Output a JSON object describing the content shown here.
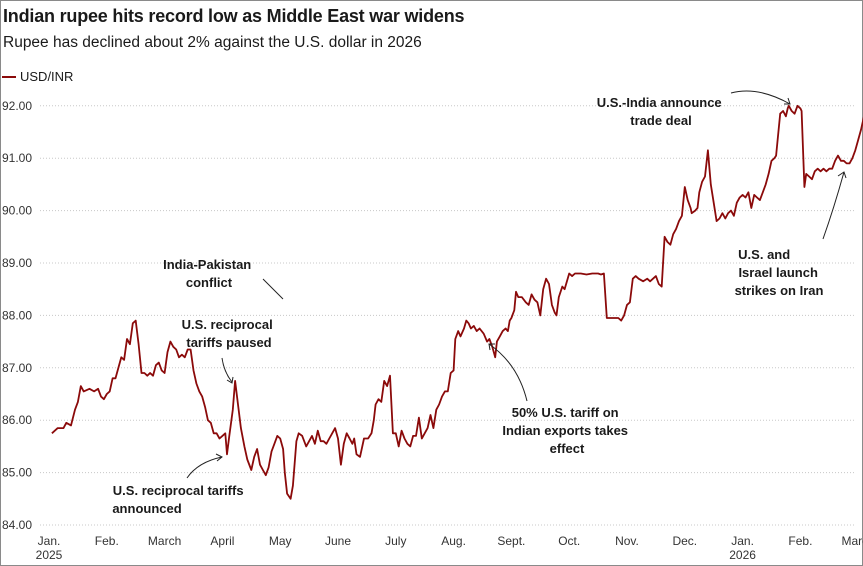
{
  "colors": {
    "line": "#8b0a0a",
    "grid": "#c8c8c8",
    "text": "#1a1a1a"
  },
  "chart_data": {
    "type": "line",
    "title": "Indian rupee hits record low as Middle East war widens",
    "subtitle": "Rupee has declined about 2% against the U.S. dollar in 2026",
    "legend": [
      "USD/INR"
    ],
    "xlabel": "",
    "ylabel": "",
    "ylim": [
      84.0,
      92.6
    ],
    "yticks": [
      84,
      85,
      86,
      87,
      88,
      89,
      90,
      91,
      92
    ],
    "ytick_labels": [
      "84.00",
      "85.00",
      "86.00",
      "87.00",
      "88.00",
      "89.00",
      "90.00",
      "91.00",
      "92.00"
    ],
    "x_unit": "months since Jan 1, 2025",
    "xlim": [
      0,
      14.3
    ],
    "xticks": [
      {
        "label": "Jan.",
        "x": 0,
        "year": "2025"
      },
      {
        "label": "Feb.",
        "x": 1
      },
      {
        "label": "March",
        "x": 2
      },
      {
        "label": "April",
        "x": 3
      },
      {
        "label": "May",
        "x": 4
      },
      {
        "label": "June",
        "x": 5
      },
      {
        "label": "July",
        "x": 6
      },
      {
        "label": "Aug.",
        "x": 7
      },
      {
        "label": "Sept.",
        "x": 8
      },
      {
        "label": "Oct.",
        "x": 9
      },
      {
        "label": "Nov.",
        "x": 10
      },
      {
        "label": "Dec.",
        "x": 11
      },
      {
        "label": "Jan.",
        "x": 12,
        "year": "2026"
      },
      {
        "label": "Feb.",
        "x": 13
      },
      {
        "label": "March",
        "x": 14
      }
    ],
    "series": [
      {
        "name": "USD/INR",
        "points": [
          [
            0.05,
            85.75
          ],
          [
            0.15,
            85.85
          ],
          [
            0.25,
            85.85
          ],
          [
            0.3,
            85.95
          ],
          [
            0.38,
            85.9
          ],
          [
            0.45,
            86.2
          ],
          [
            0.5,
            86.35
          ],
          [
            0.55,
            86.65
          ],
          [
            0.6,
            86.55
          ],
          [
            0.7,
            86.6
          ],
          [
            0.78,
            86.55
          ],
          [
            0.85,
            86.6
          ],
          [
            0.9,
            86.45
          ],
          [
            0.95,
            86.4
          ],
          [
            1.0,
            86.5
          ],
          [
            1.05,
            86.55
          ],
          [
            1.1,
            86.8
          ],
          [
            1.15,
            86.8
          ],
          [
            1.2,
            87.0
          ],
          [
            1.25,
            87.2
          ],
          [
            1.3,
            87.15
          ],
          [
            1.35,
            87.55
          ],
          [
            1.4,
            87.45
          ],
          [
            1.45,
            87.85
          ],
          [
            1.5,
            87.9
          ],
          [
            1.55,
            87.45
          ],
          [
            1.6,
            86.9
          ],
          [
            1.65,
            86.9
          ],
          [
            1.7,
            86.85
          ],
          [
            1.75,
            86.9
          ],
          [
            1.8,
            86.85
          ],
          [
            1.85,
            87.05
          ],
          [
            1.9,
            87.1
          ],
          [
            1.95,
            86.95
          ],
          [
            2.0,
            86.9
          ],
          [
            2.05,
            87.3
          ],
          [
            2.1,
            87.5
          ],
          [
            2.15,
            87.4
          ],
          [
            2.2,
            87.35
          ],
          [
            2.25,
            87.2
          ],
          [
            2.3,
            87.25
          ],
          [
            2.35,
            87.2
          ],
          [
            2.4,
            87.35
          ],
          [
            2.45,
            87.35
          ],
          [
            2.5,
            86.95
          ],
          [
            2.55,
            86.7
          ],
          [
            2.6,
            86.55
          ],
          [
            2.65,
            86.45
          ],
          [
            2.7,
            86.25
          ],
          [
            2.75,
            86.0
          ],
          [
            2.8,
            85.95
          ],
          [
            2.85,
            85.75
          ],
          [
            2.9,
            85.75
          ],
          [
            2.95,
            85.65
          ],
          [
            3.0,
            85.7
          ],
          [
            3.05,
            85.75
          ],
          [
            3.08,
            85.35
          ],
          [
            3.12,
            85.7
          ],
          [
            3.18,
            86.2
          ],
          [
            3.22,
            86.75
          ],
          [
            3.27,
            86.3
          ],
          [
            3.32,
            85.85
          ],
          [
            3.38,
            85.5
          ],
          [
            3.43,
            85.25
          ],
          [
            3.5,
            85.05
          ],
          [
            3.55,
            85.3
          ],
          [
            3.6,
            85.45
          ],
          [
            3.65,
            85.15
          ],
          [
            3.7,
            85.05
          ],
          [
            3.75,
            84.95
          ],
          [
            3.8,
            85.1
          ],
          [
            3.85,
            85.4
          ],
          [
            3.9,
            85.55
          ],
          [
            3.95,
            85.7
          ],
          [
            4.0,
            85.65
          ],
          [
            4.05,
            85.45
          ],
          [
            4.08,
            85.0
          ],
          [
            4.12,
            84.6
          ],
          [
            4.18,
            84.5
          ],
          [
            4.22,
            84.75
          ],
          [
            4.28,
            85.6
          ],
          [
            4.32,
            85.75
          ],
          [
            4.38,
            85.7
          ],
          [
            4.45,
            85.5
          ],
          [
            4.5,
            85.6
          ],
          [
            4.55,
            85.7
          ],
          [
            4.6,
            85.55
          ],
          [
            4.65,
            85.8
          ],
          [
            4.7,
            85.6
          ],
          [
            4.75,
            85.6
          ],
          [
            4.8,
            85.55
          ],
          [
            4.85,
            85.65
          ],
          [
            4.9,
            85.75
          ],
          [
            4.95,
            85.85
          ],
          [
            5.0,
            85.65
          ],
          [
            5.05,
            85.15
          ],
          [
            5.1,
            85.55
          ],
          [
            5.15,
            85.75
          ],
          [
            5.2,
            85.65
          ],
          [
            5.25,
            85.55
          ],
          [
            5.28,
            85.65
          ],
          [
            5.32,
            85.35
          ],
          [
            5.38,
            85.3
          ],
          [
            5.45,
            85.65
          ],
          [
            5.52,
            85.65
          ],
          [
            5.58,
            85.75
          ],
          [
            5.62,
            86.0
          ],
          [
            5.65,
            86.3
          ],
          [
            5.7,
            86.4
          ],
          [
            5.75,
            86.35
          ],
          [
            5.8,
            86.75
          ],
          [
            5.85,
            86.65
          ],
          [
            5.9,
            86.85
          ],
          [
            5.95,
            85.75
          ],
          [
            6.0,
            85.75
          ],
          [
            6.05,
            85.5
          ],
          [
            6.1,
            85.8
          ],
          [
            6.15,
            85.65
          ],
          [
            6.2,
            85.55
          ],
          [
            6.25,
            85.5
          ],
          [
            6.3,
            85.7
          ],
          [
            6.35,
            85.7
          ],
          [
            6.4,
            86.05
          ],
          [
            6.45,
            85.65
          ],
          [
            6.5,
            85.75
          ],
          [
            6.55,
            85.85
          ],
          [
            6.6,
            86.1
          ],
          [
            6.65,
            85.85
          ],
          [
            6.7,
            86.2
          ],
          [
            6.75,
            86.3
          ],
          [
            6.8,
            86.45
          ],
          [
            6.85,
            86.55
          ],
          [
            6.9,
            86.55
          ],
          [
            6.95,
            86.9
          ],
          [
            7.0,
            86.95
          ],
          [
            7.03,
            87.55
          ],
          [
            7.08,
            87.7
          ],
          [
            7.12,
            87.6
          ],
          [
            7.18,
            87.75
          ],
          [
            7.22,
            87.9
          ],
          [
            7.26,
            87.85
          ],
          [
            7.3,
            87.75
          ],
          [
            7.35,
            87.8
          ],
          [
            7.4,
            87.7
          ],
          [
            7.45,
            87.75
          ],
          [
            7.52,
            87.65
          ],
          [
            7.58,
            87.5
          ],
          [
            7.62,
            87.55
          ],
          [
            7.67,
            87.4
          ],
          [
            7.72,
            87.2
          ],
          [
            7.75,
            87.5
          ],
          [
            7.8,
            87.6
          ],
          [
            7.85,
            87.7
          ],
          [
            7.9,
            87.75
          ],
          [
            7.94,
            87.7
          ],
          [
            7.97,
            87.9
          ],
          [
            8.0,
            87.95
          ],
          [
            8.05,
            88.1
          ],
          [
            8.08,
            88.45
          ],
          [
            8.12,
            88.35
          ],
          [
            8.18,
            88.35
          ],
          [
            8.25,
            88.25
          ],
          [
            8.3,
            88.2
          ],
          [
            8.35,
            88.4
          ],
          [
            8.4,
            88.3
          ],
          [
            8.45,
            88.25
          ],
          [
            8.5,
            88.0
          ],
          [
            8.55,
            88.5
          ],
          [
            8.6,
            88.7
          ],
          [
            8.65,
            88.6
          ],
          [
            8.7,
            88.2
          ],
          [
            8.75,
            88.05
          ],
          [
            8.78,
            88.0
          ],
          [
            8.82,
            88.35
          ],
          [
            8.88,
            88.55
          ],
          [
            8.92,
            88.5
          ],
          [
            9.0,
            88.8
          ],
          [
            9.05,
            88.75
          ],
          [
            9.1,
            88.8
          ],
          [
            9.2,
            88.8
          ],
          [
            9.3,
            88.78
          ],
          [
            9.4,
            88.8
          ],
          [
            9.5,
            88.8
          ],
          [
            9.55,
            88.78
          ],
          [
            9.6,
            88.8
          ],
          [
            9.65,
            87.95
          ],
          [
            9.7,
            87.95
          ],
          [
            9.8,
            87.95
          ],
          [
            9.85,
            87.95
          ],
          [
            9.9,
            87.9
          ],
          [
            9.95,
            88.0
          ],
          [
            10.0,
            88.2
          ],
          [
            10.05,
            88.25
          ],
          [
            10.1,
            88.7
          ],
          [
            10.15,
            88.75
          ],
          [
            10.2,
            88.7
          ],
          [
            10.28,
            88.65
          ],
          [
            10.35,
            88.7
          ],
          [
            10.4,
            88.65
          ],
          [
            10.45,
            88.7
          ],
          [
            10.5,
            88.75
          ],
          [
            10.55,
            88.6
          ],
          [
            10.6,
            88.55
          ],
          [
            10.65,
            89.5
          ],
          [
            10.7,
            89.4
          ],
          [
            10.75,
            89.35
          ],
          [
            10.8,
            89.55
          ],
          [
            10.85,
            89.65
          ],
          [
            10.9,
            89.8
          ],
          [
            10.95,
            89.9
          ],
          [
            11.0,
            90.45
          ],
          [
            11.05,
            90.2
          ],
          [
            11.1,
            90.05
          ],
          [
            11.12,
            89.95
          ],
          [
            11.18,
            90.0
          ],
          [
            11.22,
            90.05
          ],
          [
            11.25,
            90.35
          ],
          [
            11.3,
            90.55
          ],
          [
            11.35,
            90.65
          ],
          [
            11.4,
            91.15
          ],
          [
            11.45,
            90.5
          ],
          [
            11.5,
            90.15
          ],
          [
            11.55,
            89.8
          ],
          [
            11.6,
            89.85
          ],
          [
            11.65,
            89.95
          ],
          [
            11.7,
            89.85
          ],
          [
            11.75,
            89.95
          ],
          [
            11.8,
            90.0
          ],
          [
            11.85,
            89.9
          ],
          [
            11.9,
            90.15
          ],
          [
            11.95,
            90.25
          ],
          [
            12.0,
            90.3
          ],
          [
            12.05,
            90.25
          ],
          [
            12.1,
            90.35
          ],
          [
            12.15,
            90.05
          ],
          [
            12.2,
            90.3
          ],
          [
            12.25,
            90.25
          ],
          [
            12.3,
            90.2
          ],
          [
            12.35,
            90.35
          ],
          [
            12.4,
            90.5
          ],
          [
            12.45,
            90.7
          ],
          [
            12.5,
            90.95
          ],
          [
            12.55,
            91.0
          ],
          [
            12.58,
            91.05
          ],
          [
            12.62,
            91.5
          ],
          [
            12.65,
            91.85
          ],
          [
            12.7,
            91.9
          ],
          [
            12.75,
            91.8
          ],
          [
            12.78,
            91.95
          ],
          [
            12.8,
            92.0
          ],
          [
            12.85,
            91.9
          ],
          [
            12.9,
            91.85
          ],
          [
            12.95,
            92.0
          ],
          [
            13.0,
            91.95
          ],
          [
            13.02,
            91.9
          ],
          [
            13.07,
            90.45
          ],
          [
            13.1,
            90.7
          ],
          [
            13.15,
            90.65
          ],
          [
            13.2,
            90.6
          ],
          [
            13.25,
            90.75
          ],
          [
            13.3,
            90.8
          ],
          [
            13.35,
            90.75
          ],
          [
            13.4,
            90.8
          ],
          [
            13.45,
            90.75
          ],
          [
            13.5,
            90.8
          ],
          [
            13.55,
            90.8
          ],
          [
            13.6,
            90.95
          ],
          [
            13.65,
            91.05
          ],
          [
            13.7,
            90.95
          ],
          [
            13.75,
            90.95
          ],
          [
            13.8,
            90.9
          ],
          [
            13.85,
            90.9
          ],
          [
            13.9,
            91.0
          ],
          [
            13.95,
            91.15
          ],
          [
            14.0,
            91.35
          ],
          [
            14.05,
            91.55
          ],
          [
            14.1,
            91.8
          ],
          [
            14.15,
            92.15
          ]
        ]
      }
    ],
    "annotations": [
      {
        "lines": [
          "India-Pakistan",
          "conflict"
        ]
      },
      {
        "lines": [
          "U.S. reciprocal",
          "tariffs paused"
        ]
      },
      {
        "lines": [
          "U.S. reciprocal tariffs",
          "announced"
        ]
      },
      {
        "lines": [
          "50% U.S. tariff on",
          "Indian exports takes",
          "effect"
        ]
      },
      {
        "lines": [
          "U.S.-India announce",
          "trade deal"
        ]
      },
      {
        "lines": [
          "U.S. and",
          "Israel launch",
          "strikes on Iran"
        ]
      }
    ]
  }
}
